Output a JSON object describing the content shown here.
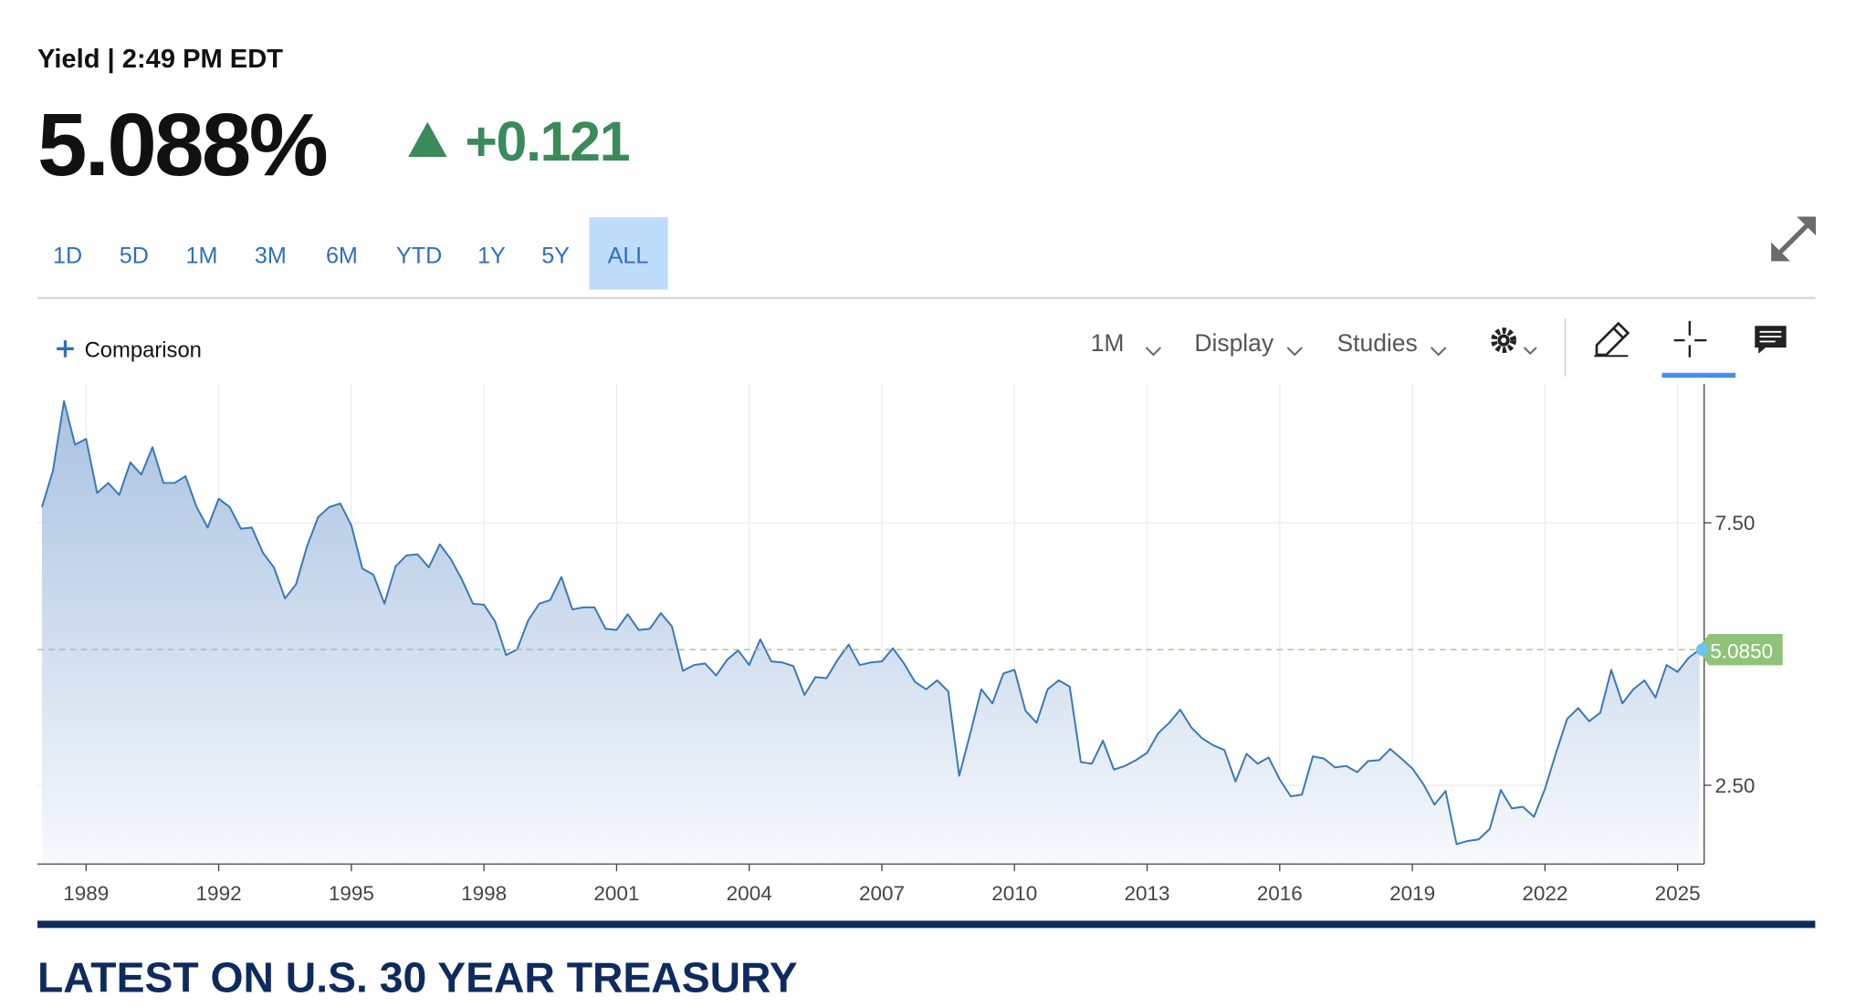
{
  "header": {
    "label": "Yield | 2:49 PM EDT",
    "price": "5.088%",
    "change": "+0.121"
  },
  "tabs": {
    "items": [
      "1D",
      "5D",
      "1M",
      "3M",
      "6M",
      "YTD",
      "1Y",
      "5Y",
      "ALL"
    ],
    "active": "ALL"
  },
  "toolbar": {
    "comparison": "Comparison",
    "interval": "1M",
    "display": "Display",
    "studies": "Studies"
  },
  "chart_data": {
    "type": "area",
    "color": "#3b78b5",
    "x": [
      1988,
      1988.25,
      1988.5,
      1988.75,
      1989,
      1989.25,
      1989.5,
      1989.75,
      1990,
      1990.25,
      1990.5,
      1990.75,
      1991,
      1991.25,
      1991.5,
      1991.75,
      1992,
      1992.25,
      1992.5,
      1992.75,
      1993,
      1993.25,
      1993.5,
      1993.75,
      1994,
      1994.25,
      1994.5,
      1994.75,
      1995,
      1995.25,
      1995.5,
      1995.75,
      1996,
      1996.25,
      1996.5,
      1996.75,
      1997,
      1997.25,
      1997.5,
      1997.75,
      1998,
      1998.25,
      1998.5,
      1998.75,
      1999,
      1999.25,
      1999.5,
      1999.75,
      2000,
      2000.25,
      2000.5,
      2000.75,
      2001,
      2001.25,
      2001.5,
      2001.75,
      2002,
      2002.25,
      2002.5,
      2002.75,
      2003,
      2003.25,
      2003.5,
      2003.75,
      2004,
      2004.25,
      2004.5,
      2004.75,
      2005,
      2005.25,
      2005.5,
      2005.75,
      2006,
      2006.25,
      2006.5,
      2006.75,
      2007,
      2007.25,
      2007.5,
      2007.75,
      2008,
      2008.25,
      2008.5,
      2008.75,
      2009,
      2009.25,
      2009.5,
      2009.75,
      2010,
      2010.25,
      2010.5,
      2010.75,
      2011,
      2011.25,
      2011.5,
      2011.75,
      2012,
      2012.25,
      2012.5,
      2012.75,
      2013,
      2013.25,
      2013.5,
      2013.75,
      2014,
      2014.25,
      2014.5,
      2014.75,
      2015,
      2015.25,
      2015.5,
      2015.75,
      2016,
      2016.25,
      2016.5,
      2016.75,
      2017,
      2017.25,
      2017.5,
      2017.75,
      2018,
      2018.25,
      2018.5,
      2018.75,
      2019,
      2019.25,
      2019.5,
      2019.75,
      2020,
      2020.25,
      2020.5,
      2020.75,
      2021,
      2021.25,
      2021.5,
      2021.75,
      2022,
      2022.25,
      2022.5,
      2022.75,
      2023,
      2023.25,
      2023.5,
      2023.75,
      2024,
      2024.25,
      2024.5,
      2024.75,
      2025,
      2025.25,
      2025.5
    ],
    "values": [
      7.8,
      8.49,
      9.82,
      8.99,
      9.1,
      8.07,
      8.26,
      8.03,
      8.65,
      8.42,
      8.94,
      8.26,
      8.26,
      8.39,
      7.8,
      7.41,
      7.96,
      7.8,
      7.39,
      7.41,
      6.93,
      6.65,
      6.06,
      6.33,
      7.06,
      7.61,
      7.8,
      7.87,
      7.45,
      6.63,
      6.51,
      5.96,
      6.67,
      6.88,
      6.9,
      6.65,
      7.09,
      6.81,
      6.42,
      5.96,
      5.94,
      5.62,
      4.98,
      5.09,
      5.64,
      5.96,
      6.03,
      6.47,
      5.85,
      5.89,
      5.89,
      5.48,
      5.46,
      5.76,
      5.46,
      5.48,
      5.78,
      5.53,
      4.68,
      4.79,
      4.82,
      4.59,
      4.89,
      5.07,
      4.79,
      5.28,
      4.86,
      4.84,
      4.77,
      4.22,
      4.56,
      4.54,
      4.89,
      5.18,
      4.79,
      4.84,
      4.86,
      5.11,
      4.82,
      4.47,
      4.33,
      4.5,
      4.29,
      2.68,
      3.49,
      4.33,
      4.06,
      4.63,
      4.7,
      3.92,
      3.69,
      4.33,
      4.5,
      4.38,
      2.94,
      2.91,
      3.35,
      2.8,
      2.87,
      2.98,
      3.12,
      3.49,
      3.69,
      3.94,
      3.6,
      3.39,
      3.26,
      3.17,
      2.57,
      3.1,
      2.91,
      3.03,
      2.61,
      2.29,
      2.32,
      3.05,
      3.01,
      2.84,
      2.87,
      2.75,
      2.96,
      2.98,
      3.19,
      3.01,
      2.82,
      2.52,
      2.13,
      2.39,
      1.38,
      1.44,
      1.47,
      1.67,
      2.41,
      2.06,
      2.09,
      1.9,
      2.43,
      3.12,
      3.76,
      3.97,
      3.72,
      3.88,
      4.7,
      4.06,
      4.33,
      4.5,
      4.17,
      4.79,
      4.66,
      4.93,
      5.085
    ],
    "xlim": [
      1987.9,
      2025.6
    ],
    "xticks": [
      1989,
      1992,
      1995,
      1998,
      2001,
      2004,
      2007,
      2010,
      2013,
      2016,
      2019,
      2022,
      2025
    ],
    "ylim": [
      1.0,
      10.15
    ],
    "yticks": [
      {
        "value": 2.5,
        "label": "2.50"
      },
      {
        "value": 7.5,
        "label": "7.50"
      }
    ],
    "grid": true,
    "reference_line": {
      "value": 5.085,
      "label": "5.0850"
    }
  },
  "section_title": "LATEST ON U.S. 30 YEAR TREASURY"
}
